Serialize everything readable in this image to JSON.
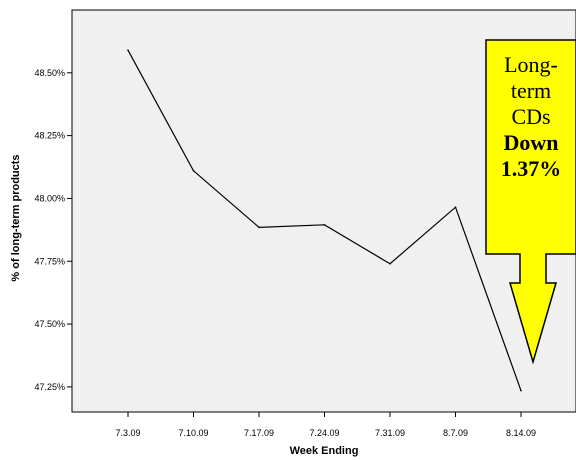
{
  "chart_data": {
    "type": "line",
    "title": "",
    "xlabel": "Week Ending",
    "ylabel": "% of long-term products",
    "categories": [
      "7.3.09",
      "7.10.09",
      "7.17.09",
      "7.24.09",
      "7.31.09",
      "8.7.09",
      "8.14.09"
    ],
    "series": [
      {
        "values": [
          48.59,
          48.11,
          47.885,
          47.895,
          47.74,
          47.965,
          47.235
        ]
      }
    ],
    "ylim": [
      47.15,
      48.75
    ],
    "yticks": [
      "47.25%",
      "47.50%",
      "47.75%",
      "48.00%",
      "48.25%",
      "48.50%"
    ],
    "ytick_values": [
      47.25,
      47.5,
      47.75,
      48.0,
      48.25,
      48.5
    ],
    "grid": false,
    "annotation": {
      "lines": [
        "Long-",
        "term",
        "CDs"
      ],
      "bold_lines": [
        "Down",
        "1.37%"
      ],
      "color": "#ffff00"
    }
  },
  "colors": {
    "plot_background": "#f0f0f0",
    "line": "#000000",
    "callout_fill": "#ffff00",
    "callout_border": "#000000"
  }
}
